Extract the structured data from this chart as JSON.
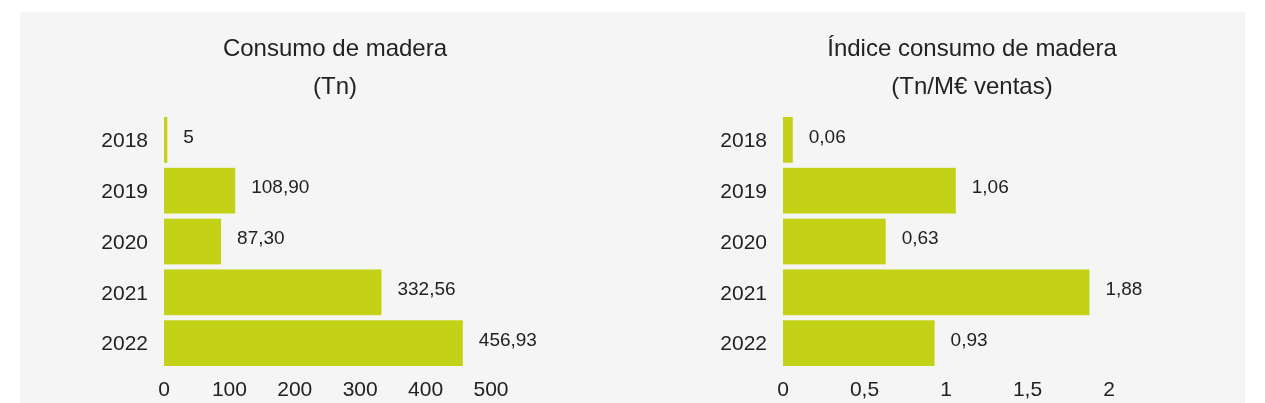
{
  "chart_data": [
    {
      "type": "bar",
      "orientation": "horizontal",
      "title": "Consumo de madera",
      "subtitle": "(Tn)",
      "categories": [
        "2018",
        "2019",
        "2020",
        "2021",
        "2022"
      ],
      "values": [
        5,
        108.9,
        87.3,
        332.56,
        456.93
      ],
      "value_labels": [
        "5",
        "108,90",
        "87,30",
        "332,56",
        "456,93"
      ],
      "color": "#c3d217",
      "xlim": [
        0,
        500
      ],
      "xticks": [
        0,
        100,
        200,
        300,
        400,
        500
      ]
    },
    {
      "type": "bar",
      "orientation": "horizontal",
      "title": "Índice consumo de madera",
      "subtitle": "(Tn/M€ ventas)",
      "categories": [
        "2018",
        "2019",
        "2020",
        "2021",
        "2022"
      ],
      "values": [
        0.06,
        1.06,
        0.63,
        1.88,
        0.93
      ],
      "value_labels": [
        "0,06",
        "1,06",
        "0,63",
        "1,88",
        "0,93"
      ],
      "color": "#c3d217",
      "xlim": [
        0,
        2
      ],
      "xticks": [
        0,
        {
          "value": 0.5,
          "label": "0,5"
        },
        1,
        {
          "value": 1.5,
          "label": "1,5"
        },
        2
      ]
    }
  ]
}
